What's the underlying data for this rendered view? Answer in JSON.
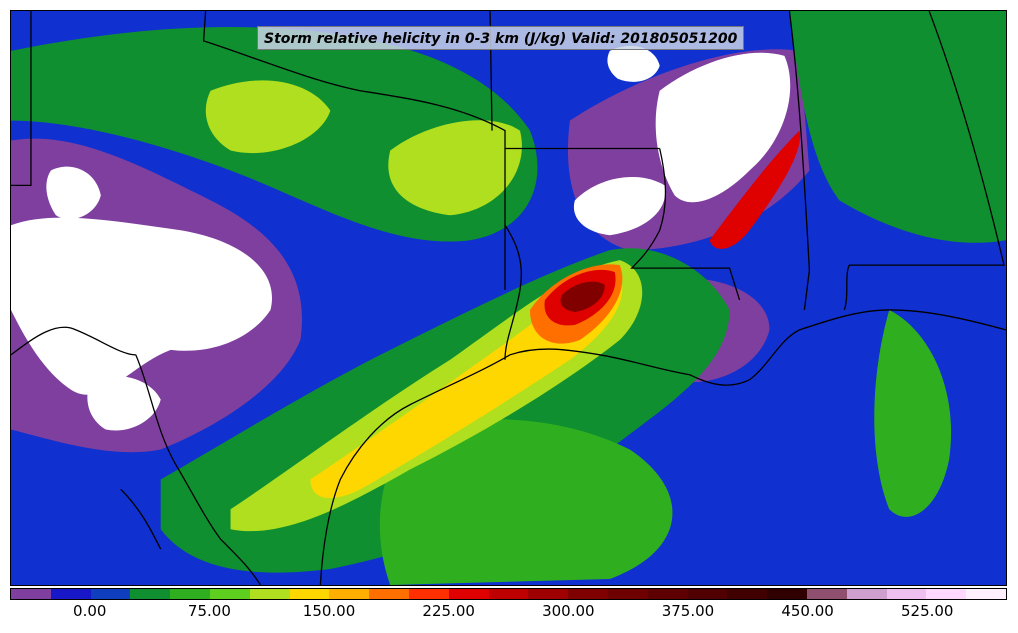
{
  "title": "Storm relative helicity in 0-3 km (J/kg) Valid: 201805051200",
  "colorbar": {
    "colors": [
      "#7f3f9f",
      "#1818c8",
      "#0f3fbf",
      "#0f8f2f",
      "#2faf1f",
      "#5fcf1f",
      "#afdf1f",
      "#ffd700",
      "#ffaf00",
      "#ff6f00",
      "#ff2f00",
      "#df0000",
      "#bf0000",
      "#9f0000",
      "#800000",
      "#6f0000",
      "#5f0000",
      "#500000",
      "#400000",
      "#300000",
      "#8f4f6f",
      "#cf9fcf",
      "#efbfef",
      "#ffd7ff",
      "#ffefff"
    ],
    "tick_labels": [
      "0.00",
      "75.00",
      "150.00",
      "225.00",
      "300.00",
      "375.00",
      "450.00",
      "525.00"
    ],
    "tick_values": [
      0,
      75,
      150,
      225,
      300,
      375,
      450,
      525
    ],
    "min_value": -50,
    "max_value": 575
  },
  "map": {
    "base_color": "#1030d0",
    "white_region_color": "#ffffff",
    "boundary_color": "#000000"
  }
}
